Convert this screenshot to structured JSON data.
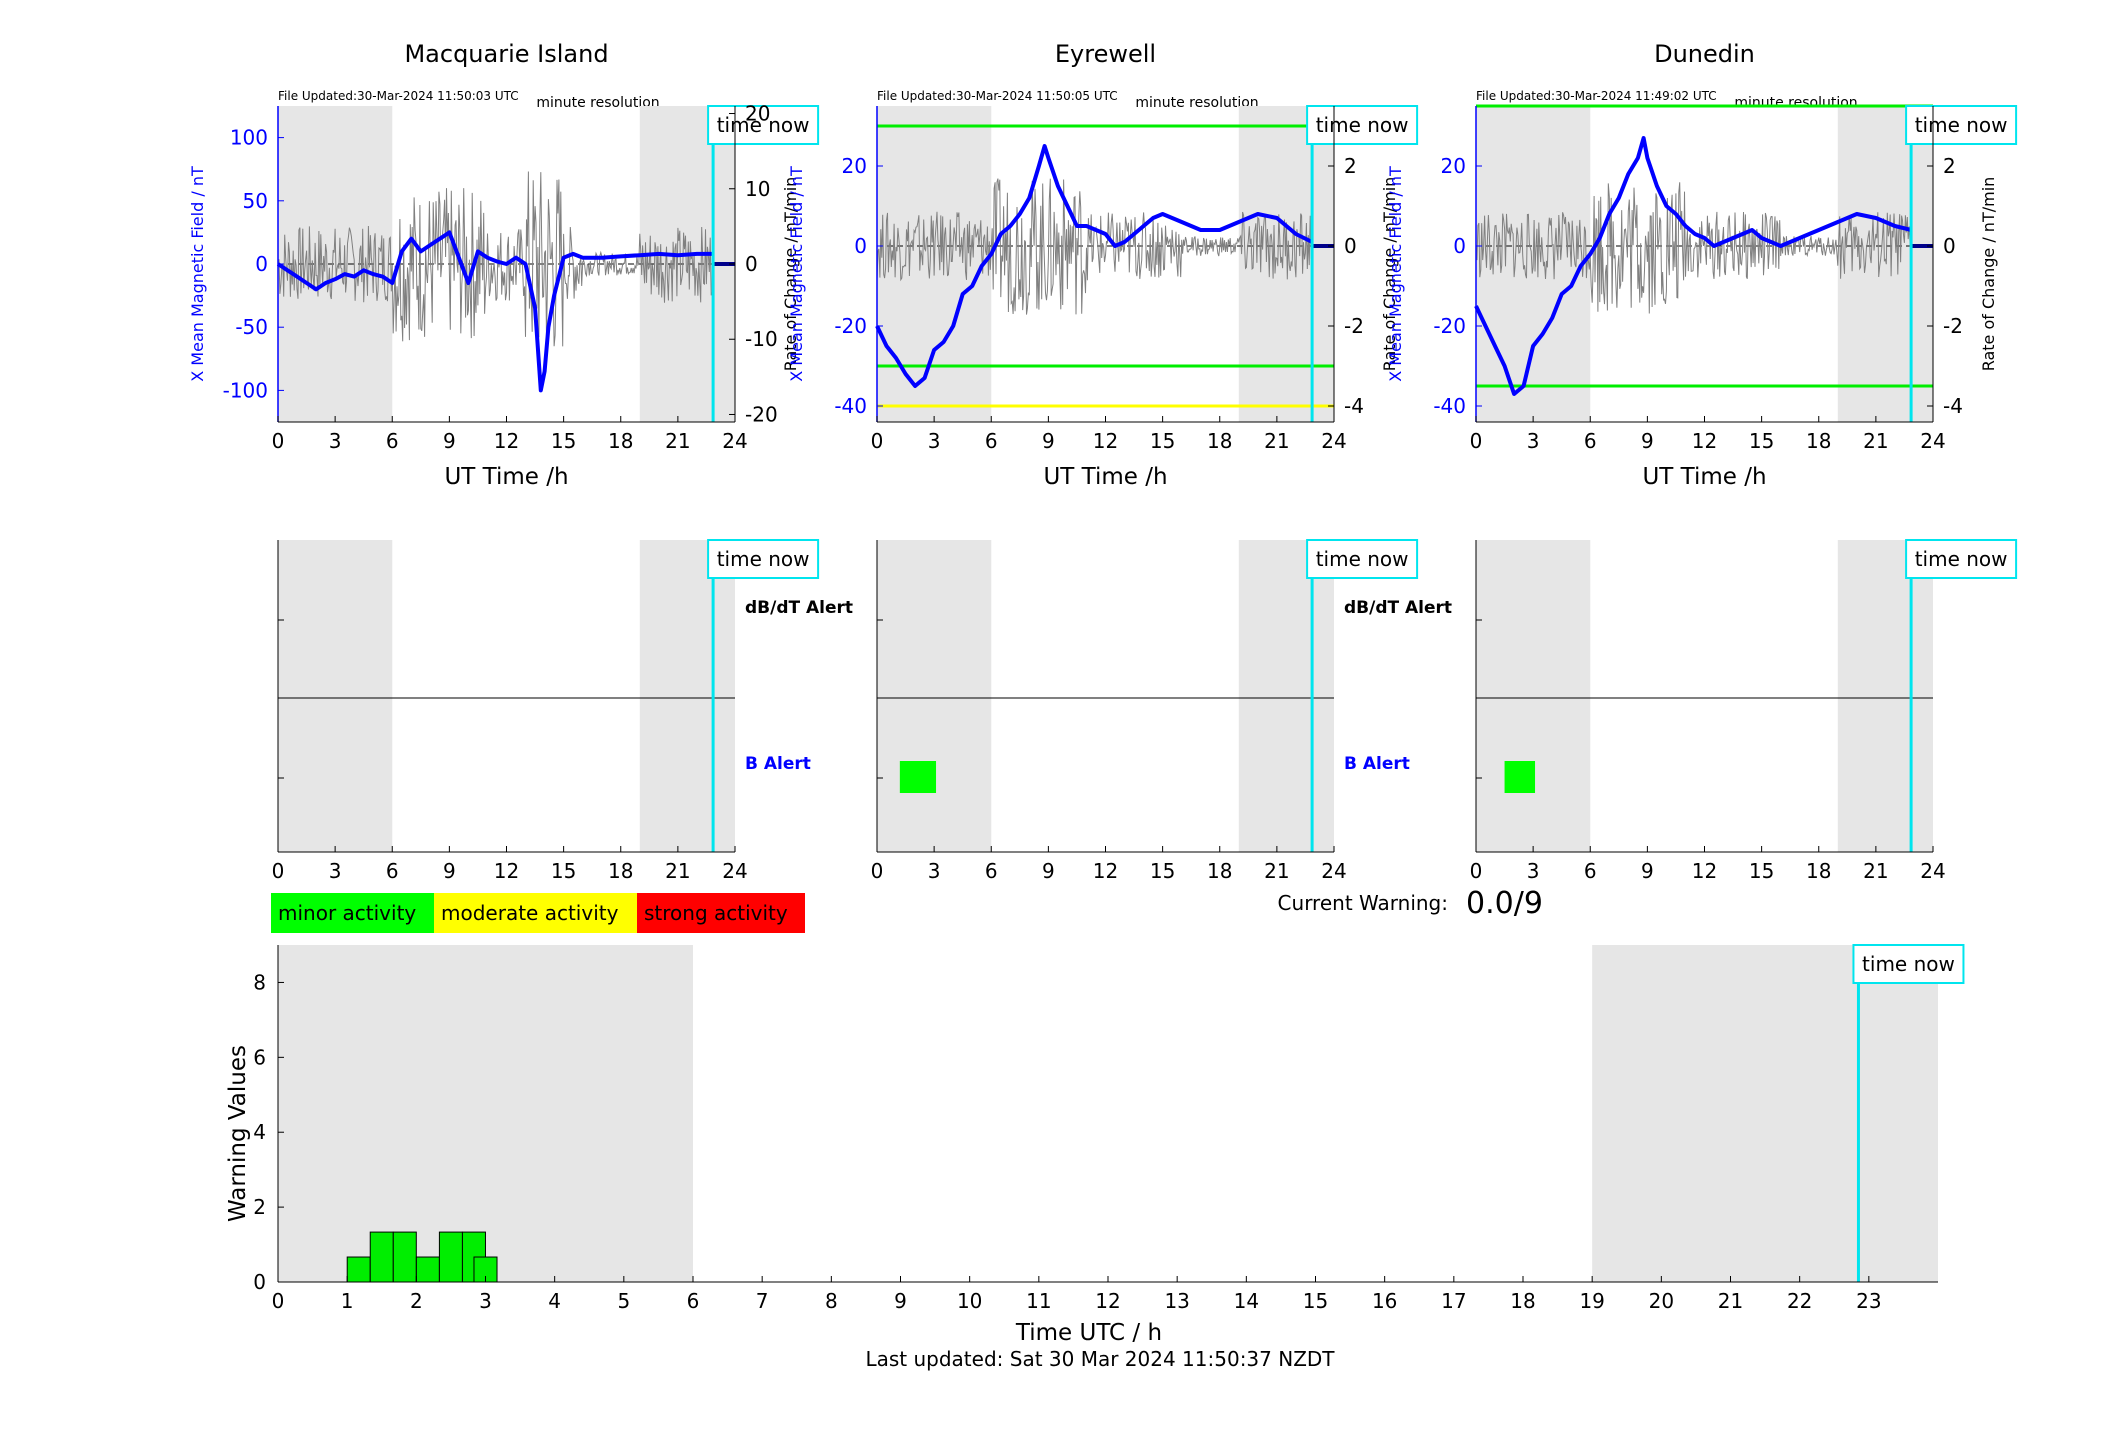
{
  "labels": {
    "time_now": "time now",
    "xlabel_ut": "UT Time /h",
    "ylabel_b": "X Mean Magnetic Field / nT",
    "ylabel_rate": "Rate of Change / nT/min",
    "minute_res": "minute resolution",
    "dbdt_alert": "dB/dT Alert",
    "b_alert": "B Alert",
    "current_warning_label": "Current Warning:",
    "current_warning_value": "0.0/9",
    "last_updated": "Last updated: Sat 30 Mar 2024 11:50:37 NZDT"
  },
  "legend": [
    {
      "label": "minor activity",
      "color": "#00ff00"
    },
    {
      "label": "moderate activity",
      "color": "#ffff00"
    },
    {
      "label": "strong activity",
      "color": "#ff0000"
    }
  ],
  "colors": {
    "shade": "#e6e6e6",
    "mean_line": "#0000ff",
    "rate_line": "#808080",
    "time_now": "#00e5ee",
    "threshold_green": "#00ee00",
    "threshold_yellow": "#ffff00"
  },
  "chart_data": [
    {
      "type": "line",
      "station": "Macquarie Island",
      "file_updated": "File Updated:30-Mar-2024 11:50:03 UTC",
      "xlabel": "UT Time /h",
      "ylabel": "X Mean Magnetic Field / nT",
      "ylabel_right": "Rate of Change / nT/min",
      "xlim": [
        0,
        24
      ],
      "xticks": [
        "0",
        "3",
        "6",
        "9",
        "12",
        "15",
        "18",
        "21",
        "24"
      ],
      "ylim": [
        -125,
        125
      ],
      "yticks": [
        "-100",
        "-50",
        "0",
        "50",
        "100"
      ],
      "yticks_values": [
        -100,
        -50,
        0,
        50,
        100
      ],
      "ylim_right": [
        -21,
        21
      ],
      "yticks_right": [
        "-20",
        "-10",
        "0",
        "10",
        "20"
      ],
      "yticks_right_values": [
        -20,
        -10,
        0,
        10,
        20
      ],
      "shaded": [
        [
          0,
          6
        ],
        [
          19,
          24
        ]
      ],
      "time_now": 22.85,
      "thresholds": [],
      "series": [
        {
          "x": [
            0,
            0.5,
            1,
            1.5,
            2,
            2.5,
            3,
            3.5,
            4,
            4.5,
            5,
            5.5,
            6,
            6.5,
            7,
            7.5,
            8,
            8.5,
            9,
            9.5,
            10,
            10.5,
            11,
            11.5,
            12,
            12.5,
            13,
            13.5,
            13.8,
            14,
            14.2,
            14.5,
            15,
            15.5,
            16,
            17,
            18,
            19,
            20,
            21,
            22,
            22.85
          ],
          "values": [
            0,
            -5,
            -10,
            -15,
            -20,
            -15,
            -12,
            -8,
            -10,
            -5,
            -8,
            -10,
            -15,
            10,
            20,
            10,
            15,
            20,
            25,
            5,
            -15,
            10,
            5,
            2,
            0,
            5,
            0,
            -35,
            -100,
            -85,
            -50,
            -25,
            5,
            8,
            5,
            5,
            6,
            7,
            8,
            7,
            8,
            8
          ]
        }
      ]
    },
    {
      "type": "line",
      "station": "Eyrewell",
      "file_updated": "File Updated:30-Mar-2024 11:50:05 UTC",
      "xlabel": "UT Time /h",
      "ylabel": "X Mean Magnetic Field / nT",
      "ylabel_right": "Rate of Change / nT/min",
      "xlim": [
        0,
        24
      ],
      "xticks": [
        "0",
        "3",
        "6",
        "9",
        "12",
        "15",
        "18",
        "21",
        "24"
      ],
      "ylim": [
        -44,
        35
      ],
      "yticks": [
        "-40",
        "-20",
        "0",
        "20"
      ],
      "yticks_values": [
        -40,
        -20,
        0,
        20
      ],
      "ylim_right": [
        -4.4,
        3.5
      ],
      "yticks_right": [
        "-4",
        "-2",
        "0",
        "2"
      ],
      "yticks_right_values": [
        -4,
        -2,
        0,
        2
      ],
      "shaded": [
        [
          0,
          6
        ],
        [
          19,
          24
        ]
      ],
      "time_now": 22.85,
      "thresholds": [
        {
          "value": 30,
          "color": "#00ee00"
        },
        {
          "value": -30,
          "color": "#00ee00"
        },
        {
          "value": -40,
          "color": "#ffff00"
        }
      ],
      "series": [
        {
          "x": [
            0,
            0.5,
            1,
            1.5,
            2,
            2.5,
            3,
            3.5,
            4,
            4.5,
            5,
            5.5,
            6,
            6.5,
            7,
            7.5,
            8,
            8.5,
            8.8,
            9,
            9.5,
            10,
            10.5,
            11,
            11.5,
            12,
            12.5,
            13,
            13.5,
            14,
            14.5,
            15,
            16,
            17,
            18,
            19,
            20,
            21,
            22,
            22.85
          ],
          "values": [
            -20,
            -25,
            -28,
            -32,
            -35,
            -33,
            -26,
            -24,
            -20,
            -12,
            -10,
            -5,
            -2,
            3,
            5,
            8,
            12,
            20,
            25,
            22,
            15,
            10,
            5,
            5,
            4,
            3,
            0,
            1,
            3,
            5,
            7,
            8,
            6,
            4,
            4,
            6,
            8,
            7,
            3,
            1
          ]
        }
      ]
    },
    {
      "type": "line",
      "station": "Dunedin",
      "file_updated": "File Updated:30-Mar-2024 11:49:02 UTC",
      "xlabel": "UT Time /h",
      "ylabel": "X Mean Magnetic Field / nT",
      "ylabel_right": "Rate of Change / nT/min",
      "xlim": [
        0,
        24
      ],
      "xticks": [
        "0",
        "3",
        "6",
        "9",
        "12",
        "15",
        "18",
        "21",
        "24"
      ],
      "ylim": [
        -44,
        35
      ],
      "yticks": [
        "-40",
        "-20",
        "0",
        "20"
      ],
      "yticks_values": [
        -40,
        -20,
        0,
        20
      ],
      "ylim_right": [
        -4.4,
        3.5
      ],
      "yticks_right": [
        "-4",
        "-2",
        "0",
        "2"
      ],
      "yticks_right_values": [
        -4,
        -2,
        0,
        2
      ],
      "shaded": [
        [
          0,
          6
        ],
        [
          19,
          24
        ]
      ],
      "time_now": 22.85,
      "thresholds": [
        {
          "value": 35,
          "color": "#00ee00"
        },
        {
          "value": -35,
          "color": "#00ee00"
        }
      ],
      "series": [
        {
          "x": [
            0,
            0.5,
            1,
            1.5,
            2,
            2.5,
            3,
            3.5,
            4,
            4.5,
            5,
            5.5,
            6,
            6.5,
            7,
            7.5,
            8,
            8.5,
            8.8,
            9,
            9.5,
            10,
            10.5,
            11,
            11.5,
            12,
            12.5,
            13,
            13.5,
            14,
            14.5,
            15,
            16,
            17,
            18,
            19,
            20,
            21,
            22,
            22.85
          ],
          "values": [
            -15,
            -20,
            -25,
            -30,
            -37,
            -35,
            -25,
            -22,
            -18,
            -12,
            -10,
            -5,
            -2,
            2,
            8,
            12,
            18,
            22,
            27,
            22,
            15,
            10,
            8,
            5,
            3,
            2,
            0,
            1,
            2,
            3,
            4,
            2,
            0,
            2,
            4,
            6,
            8,
            7,
            5,
            4
          ]
        }
      ]
    },
    {
      "type": "scatter",
      "station": "Macquarie Island",
      "title": "",
      "xlim": [
        0,
        24
      ],
      "xticks": [
        "0",
        "3",
        "6",
        "9",
        "12",
        "15",
        "18",
        "21",
        "24"
      ],
      "shaded": [
        [
          0,
          6
        ],
        [
          19,
          24
        ]
      ],
      "time_now": 22.85,
      "alerts": []
    },
    {
      "type": "scatter",
      "station": "Eyrewell",
      "xlim": [
        0,
        24
      ],
      "xticks": [
        "0",
        "3",
        "6",
        "9",
        "12",
        "15",
        "18",
        "21",
        "24"
      ],
      "shaded": [
        [
          0,
          6
        ],
        [
          19,
          24
        ]
      ],
      "time_now": 22.85,
      "alerts": [
        {
          "row": "B Alert",
          "x_start": 1.2,
          "x_end": 3.1,
          "color": "#00ff00"
        }
      ]
    },
    {
      "type": "scatter",
      "station": "Dunedin",
      "xlim": [
        0,
        24
      ],
      "xticks": [
        "0",
        "3",
        "6",
        "9",
        "12",
        "15",
        "18",
        "21",
        "24"
      ],
      "shaded": [
        [
          0,
          6
        ],
        [
          19,
          24
        ]
      ],
      "time_now": 22.85,
      "alerts": [
        {
          "row": "B Alert",
          "x_start": 1.5,
          "x_end": 3.1,
          "color": "#00ff00"
        }
      ]
    },
    {
      "type": "bar",
      "xlabel": "Time UTC / h",
      "ylabel": "Warning Values",
      "xlim": [
        0,
        24
      ],
      "ylim": [
        0,
        9
      ],
      "xticks": [
        "0",
        "1",
        "2",
        "3",
        "4",
        "5",
        "6",
        "7",
        "8",
        "9",
        "10",
        "11",
        "12",
        "13",
        "14",
        "15",
        "16",
        "17",
        "18",
        "19",
        "20",
        "21",
        "22",
        "23"
      ],
      "yticks": [
        "0",
        "2",
        "4",
        "6",
        "8"
      ],
      "yticks_values": [
        0,
        2,
        4,
        6,
        8
      ],
      "shaded": [
        [
          0,
          6
        ],
        [
          19,
          24
        ]
      ],
      "time_now": 22.85,
      "bar_width": 0.333,
      "bars": [
        {
          "x": 1.167,
          "value": 0.667
        },
        {
          "x": 1.5,
          "value": 1.333
        },
        {
          "x": 1.833,
          "value": 1.333
        },
        {
          "x": 2.167,
          "value": 0.667
        },
        {
          "x": 2.5,
          "value": 1.333
        },
        {
          "x": 2.833,
          "value": 1.333
        },
        {
          "x": 3.0,
          "value": 0.667
        }
      ]
    }
  ]
}
